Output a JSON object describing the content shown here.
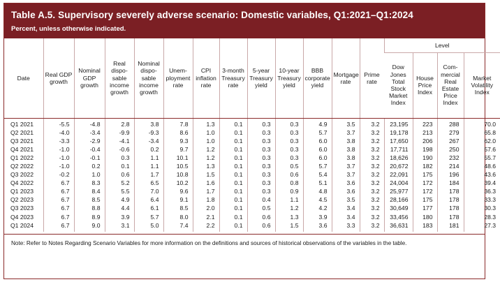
{
  "header": {
    "title": "Table A.5. Supervisory severely adverse scenario: Domestic variables, Q1:2021–Q1:2024",
    "subtitle": "Percent, unless otherwise indicated."
  },
  "table": {
    "level_label": "Level",
    "columns": [
      "Date",
      "Real GDP growth",
      "Nominal GDP growth",
      "Real disposable income growth",
      "Nominal disposable income growth",
      "Unemployment rate",
      "CPI inflation rate",
      "3-month Treasury rate",
      "5-year Treasury yield",
      "10-year Treasury yield",
      "BBB corporate yield",
      "Mortgage rate",
      "Prime rate",
      "Dow Jones Total Stock Market Index",
      "House Price Index",
      "Commercial Real Estate Price Index",
      "Market Volatility Index"
    ],
    "column_lines": [
      [
        "Date"
      ],
      [
        "Real GDP",
        "growth"
      ],
      [
        "Nominal",
        "GDP",
        "growth"
      ],
      [
        "Real",
        "dispo-",
        "sable",
        "income",
        "growth"
      ],
      [
        "Nominal",
        "dispo-",
        "sable",
        "income",
        "growth"
      ],
      [
        "Unem-",
        "ployment",
        "rate"
      ],
      [
        "CPI",
        "inflation",
        "rate"
      ],
      [
        "3-month",
        "Treasury",
        "rate"
      ],
      [
        "5-year",
        "Treasury",
        "yield"
      ],
      [
        "10-year",
        "Treasury",
        "yield"
      ],
      [
        "BBB",
        "corporate",
        "yield"
      ],
      [
        "Mortgage",
        "rate"
      ],
      [
        "Prime",
        "rate"
      ],
      [
        "Dow",
        "Jones",
        "Total",
        "Stock",
        "Market",
        "Index"
      ],
      [
        "House",
        "Price",
        "Index"
      ],
      [
        "Com-",
        "mercial",
        "Real",
        "Estate",
        "Price",
        "Index"
      ],
      [
        "Market",
        "Volatility",
        "Index"
      ]
    ],
    "rows": [
      [
        "Q1 2021",
        "-5.5",
        "-4.8",
        "2.8",
        "3.8",
        "7.8",
        "1.3",
        "0.1",
        "0.3",
        "0.3",
        "4.9",
        "3.5",
        "3.2",
        "23,195",
        "223",
        "288",
        "70.0"
      ],
      [
        "Q2 2021",
        "-4.0",
        "-3.4",
        "-9.9",
        "-9.3",
        "8.6",
        "1.0",
        "0.1",
        "0.3",
        "0.3",
        "5.7",
        "3.7",
        "3.2",
        "19,178",
        "213",
        "279",
        "65.8"
      ],
      [
        "Q3 2021",
        "-3.3",
        "-2.9",
        "-4.1",
        "-3.4",
        "9.3",
        "1.0",
        "0.1",
        "0.3",
        "0.3",
        "6.0",
        "3.8",
        "3.2",
        "17,650",
        "206",
        "267",
        "62.0"
      ],
      [
        "Q4 2021",
        "-1.0",
        "-0.4",
        "-0.6",
        "0.2",
        "9.7",
        "1.2",
        "0.1",
        "0.3",
        "0.3",
        "6.0",
        "3.8",
        "3.2",
        "17,711",
        "198",
        "250",
        "57.6"
      ],
      [
        "Q1 2022",
        "-1.0",
        "-0.1",
        "0.3",
        "1.1",
        "10.1",
        "1.2",
        "0.1",
        "0.3",
        "0.3",
        "6.0",
        "3.8",
        "3.2",
        "18,626",
        "190",
        "232",
        "55.7"
      ],
      [
        "Q2 2022",
        "-1.0",
        "0.2",
        "0.1",
        "1.1",
        "10.5",
        "1.3",
        "0.1",
        "0.3",
        "0.5",
        "5.7",
        "3.7",
        "3.2",
        "20,672",
        "182",
        "214",
        "48.6"
      ],
      [
        "Q3 2022",
        "-0.2",
        "1.0",
        "0.6",
        "1.7",
        "10.8",
        "1.5",
        "0.1",
        "0.3",
        "0.6",
        "5.4",
        "3.7",
        "3.2",
        "22,091",
        "175",
        "196",
        "43.6"
      ],
      [
        "Q4 2022",
        "6.7",
        "8.3",
        "5.2",
        "6.5",
        "10.2",
        "1.6",
        "0.1",
        "0.3",
        "0.8",
        "5.1",
        "3.6",
        "3.2",
        "24,004",
        "172",
        "184",
        "39.4"
      ],
      [
        "Q1 2023",
        "6.7",
        "8.4",
        "5.5",
        "7.0",
        "9.6",
        "1.7",
        "0.1",
        "0.3",
        "0.9",
        "4.8",
        "3.6",
        "3.2",
        "25,977",
        "172",
        "178",
        "36.3"
      ],
      [
        "Q2 2023",
        "6.7",
        "8.5",
        "4.9",
        "6.4",
        "9.1",
        "1.8",
        "0.1",
        "0.4",
        "1.1",
        "4.5",
        "3.5",
        "3.2",
        "28,166",
        "175",
        "178",
        "33.3"
      ],
      [
        "Q3 2023",
        "6.7",
        "8.8",
        "4.4",
        "6.1",
        "8.5",
        "2.0",
        "0.1",
        "0.5",
        "1.2",
        "4.2",
        "3.4",
        "3.2",
        "30,649",
        "177",
        "178",
        "30.3"
      ],
      [
        "Q4 2023",
        "6.7",
        "8.9",
        "3.9",
        "5.7",
        "8.0",
        "2.1",
        "0.1",
        "0.6",
        "1.3",
        "3.9",
        "3.4",
        "3.2",
        "33,456",
        "180",
        "178",
        "28.3"
      ],
      [
        "Q1 2024",
        "6.7",
        "9.0",
        "3.1",
        "5.0",
        "7.4",
        "2.2",
        "0.1",
        "0.6",
        "1.5",
        "3.6",
        "3.3",
        "3.2",
        "36,631",
        "183",
        "181",
        "27.3"
      ]
    ]
  },
  "note": "Note: Refer to Notes Regarding Scenario Variables for more information on the definitions and sources of historical observations of the variables in the table."
}
